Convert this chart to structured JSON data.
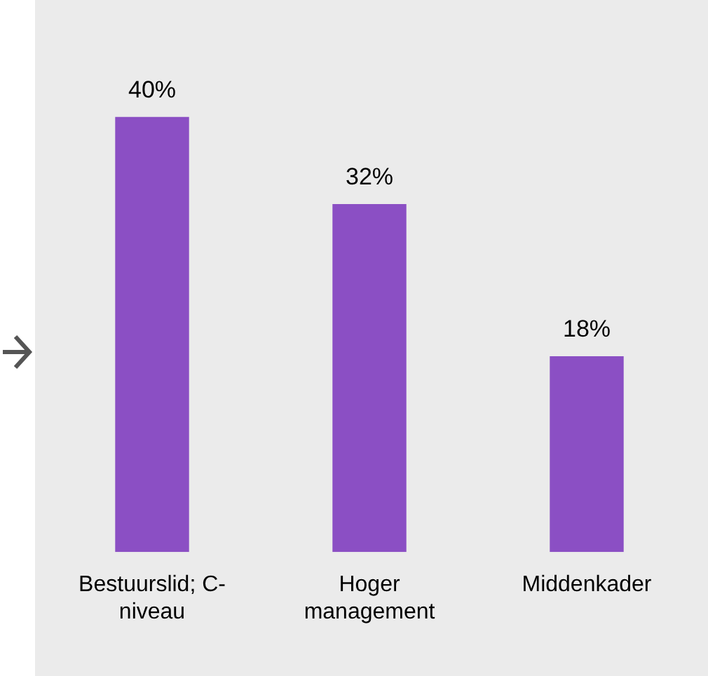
{
  "chart_data": {
    "type": "bar",
    "categories": [
      "Bestuurslid; C-niveau",
      "Hoger management",
      "Middenkader"
    ],
    "values": [
      40,
      32,
      18
    ],
    "color": "#8b4fc4",
    "value_labels": [
      "40%",
      "32%",
      "18%"
    ],
    "grid": false,
    "legend": false
  }
}
